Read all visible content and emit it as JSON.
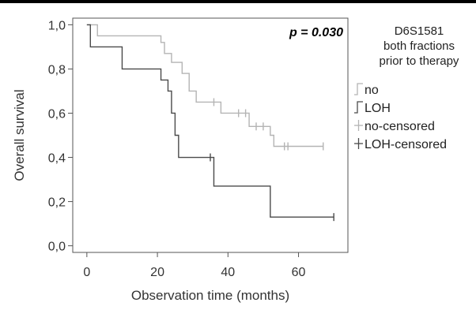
{
  "chart_data": {
    "type": "line",
    "step": true,
    "title": "",
    "xlabel": "Observation time (months)",
    "ylabel": "Overall survival",
    "xlim": [
      -4,
      74
    ],
    "ylim": [
      -0.03,
      1.03
    ],
    "x_ticks": [
      0,
      20,
      40,
      60
    ],
    "y_ticks": [
      0,
      0.2,
      0.4,
      0.6,
      0.8,
      1.0
    ],
    "y_tick_labels": [
      "0,0",
      "0,2",
      "0,4",
      "0,6",
      "0,8",
      "1,0"
    ],
    "annotation": "p = 0.030",
    "legend": {
      "title_lines": [
        "D6S1581",
        "both fractions",
        "prior to therapy"
      ],
      "placement": "right-outside",
      "entries": [
        "no",
        "LOH",
        "no-censored",
        "LOH-censored"
      ]
    },
    "series": [
      {
        "name": "no",
        "color": "#b4b4b4",
        "steps": [
          [
            0,
            1.0
          ],
          [
            3,
            0.95
          ],
          [
            21,
            0.92
          ],
          [
            22,
            0.87
          ],
          [
            24,
            0.83
          ],
          [
            27,
            0.78
          ],
          [
            29,
            0.7
          ],
          [
            31,
            0.65
          ],
          [
            38,
            0.6
          ],
          [
            46,
            0.54
          ],
          [
            52,
            0.5
          ],
          [
            53,
            0.45
          ],
          [
            67,
            0.45
          ]
        ],
        "censored": [
          [
            36,
            0.65
          ],
          [
            43,
            0.6
          ],
          [
            45,
            0.6
          ],
          [
            48,
            0.54
          ],
          [
            50,
            0.54
          ],
          [
            56,
            0.45
          ],
          [
            57,
            0.45
          ],
          [
            67,
            0.45
          ]
        ]
      },
      {
        "name": "LOH",
        "color": "#4a4a4a",
        "steps": [
          [
            0,
            1.0
          ],
          [
            1,
            0.9
          ],
          [
            10,
            0.8
          ],
          [
            21,
            0.75
          ],
          [
            23,
            0.7
          ],
          [
            24,
            0.6
          ],
          [
            25,
            0.5
          ],
          [
            26,
            0.4
          ],
          [
            36,
            0.27
          ],
          [
            52,
            0.13
          ],
          [
            70,
            0.13
          ]
        ],
        "censored": [
          [
            35,
            0.4
          ],
          [
            70,
            0.13
          ]
        ]
      }
    ]
  }
}
